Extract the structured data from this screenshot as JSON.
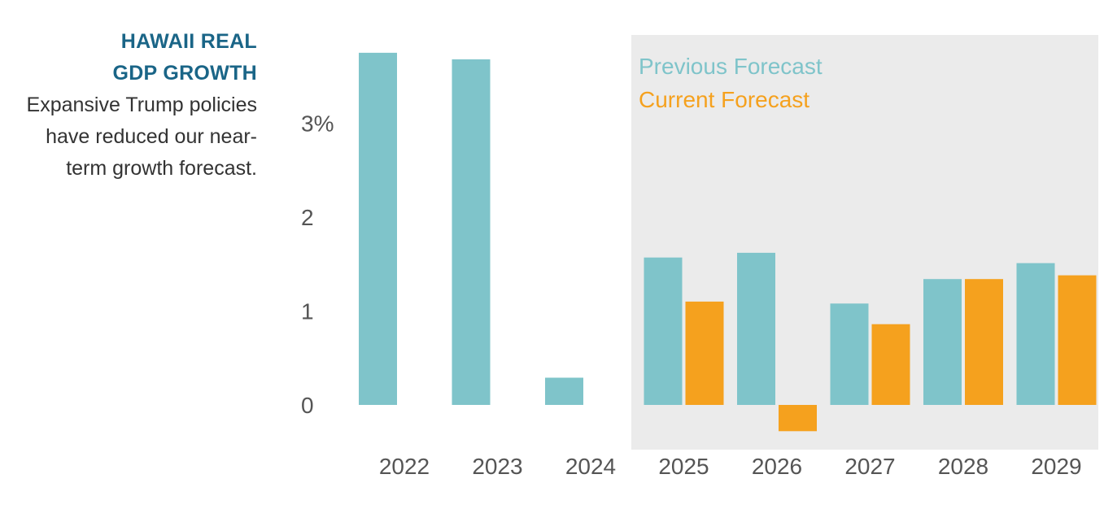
{
  "side_text": {
    "title_lines": [
      "HAWAII REAL",
      "GDP GROWTH"
    ],
    "description_lines": [
      "Expansive Trump policies",
      "have reduced our near-",
      "term growth forecast."
    ]
  },
  "colors": {
    "previous": "#7fc4ca",
    "current": "#f5a11e",
    "forecast_shade": "#ebebeb",
    "title": "#1a6587"
  },
  "chart_data": {
    "type": "bar",
    "title": "HAWAII REAL GDP GROWTH",
    "xlabel": "",
    "ylabel": "",
    "ylim": [
      -0.45,
      3.9
    ],
    "yticks": [
      {
        "value": 3,
        "label": "3%"
      },
      {
        "value": 2,
        "label": "2"
      },
      {
        "value": 1,
        "label": "1"
      },
      {
        "value": 0,
        "label": "0"
      }
    ],
    "categories": [
      "2022",
      "2023",
      "2024",
      "2025",
      "2026",
      "2027",
      "2028",
      "2029"
    ],
    "forecast_start": "2025",
    "legend": {
      "placement": "top-left of forecast region"
    },
    "series": [
      {
        "name": "Previous Forecast",
        "color": "#7fc4ca",
        "values": [
          3.75,
          3.68,
          0.29,
          1.57,
          1.62,
          1.08,
          1.34,
          1.51
        ]
      },
      {
        "name": "Current Forecast",
        "color": "#f5a11e",
        "values": [
          null,
          null,
          null,
          1.1,
          -0.28,
          0.86,
          1.34,
          1.38
        ]
      }
    ]
  }
}
